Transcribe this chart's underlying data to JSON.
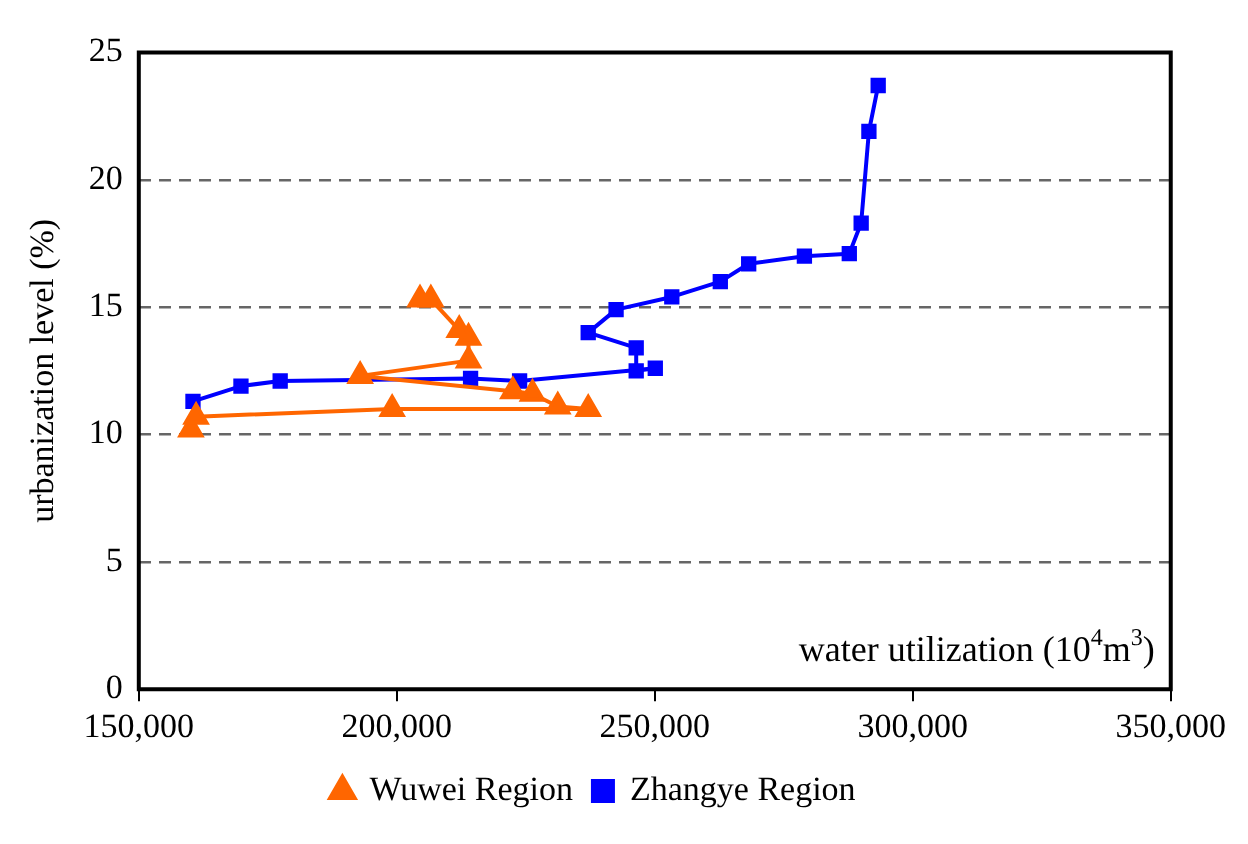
{
  "chart_data": {
    "type": "line",
    "xlabel": "water utilization (10$^{4}$m$^{3}$)",
    "ylabel": "urbanization level (%)",
    "xlim": [
      150000,
      350000
    ],
    "xticks": [
      {
        "value": 150000,
        "label": "150,000"
      },
      {
        "value": 200000,
        "label": "200,000"
      },
      {
        "value": 250000,
        "label": "250,000"
      },
      {
        "value": 300000,
        "label": "300,000"
      },
      {
        "value": 350000,
        "label": "350,000"
      }
    ],
    "ylim": [
      0,
      25
    ],
    "yticks": [
      0,
      5,
      10,
      15,
      20,
      25
    ],
    "grid": "y",
    "legend": "bottom",
    "line_style": "solid",
    "series": [
      {
        "name": "Wuwei Region",
        "color": "#ff6600",
        "marker": "triangle",
        "x": [
          160100,
          161100,
          199100,
          237100,
          231200,
          226300,
          222500,
          192900,
          213900,
          213900,
          212100,
          206600,
          204500
        ],
        "values": [
          10.2,
          10.7,
          11.0,
          11.0,
          11.1,
          11.6,
          11.7,
          12.3,
          12.9,
          13.8,
          14.1,
          15.3,
          15.3
        ]
      },
      {
        "name": "Zhangye Region",
        "color": "#0000ff",
        "marker": "square",
        "x": [
          160500,
          169800,
          177400,
          214300,
          223800,
          250100,
          246400,
          246400,
          237100,
          242500,
          253300,
          262700,
          268200,
          279000,
          287700,
          290000,
          291500,
          293300
        ],
        "values": [
          11.3,
          11.9,
          12.1,
          12.2,
          12.1,
          12.6,
          12.5,
          13.4,
          14.0,
          14.9,
          15.4,
          16.0,
          16.7,
          17.0,
          17.1,
          18.3,
          21.9,
          23.7
        ]
      }
    ]
  }
}
